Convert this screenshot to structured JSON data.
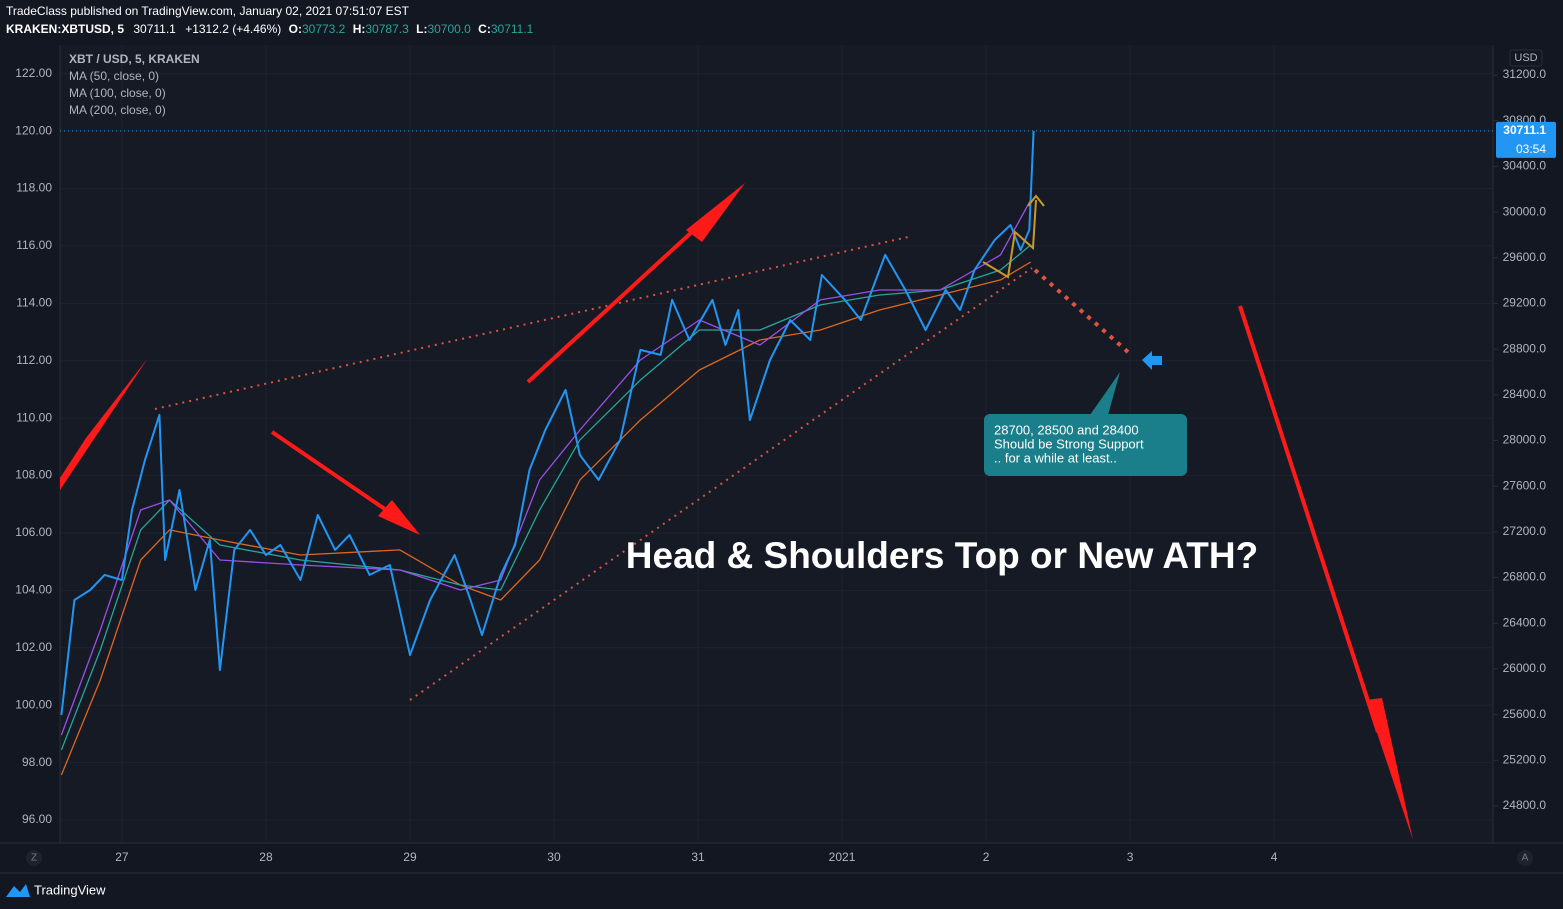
{
  "header": {
    "publisher": "TradeClass published on TradingView.com, January 02, 2021 07:51:07 EST",
    "symbol": "KRAKEN:XBTUSD, 5",
    "last": "30711.1",
    "change": "+1312.2 (+4.46%)",
    "open_label": "O:",
    "open": "30773.2",
    "high_label": "H:",
    "high": "30787.3",
    "low_label": "L:",
    "low": "30700.0",
    "close_label": "C:",
    "close": "30711.1"
  },
  "chart_data": {
    "type": "line",
    "currency": "USD",
    "timer": "03:54",
    "left_scale_button": "Z",
    "auto_scale_button": "A",
    "xlim": [
      -0.43,
      9.52
    ],
    "xticks": [
      {
        "value": 0,
        "label": "27"
      },
      {
        "value": 1,
        "label": "28"
      },
      {
        "value": 2,
        "label": "29"
      },
      {
        "value": 3,
        "label": "30"
      },
      {
        "value": 4,
        "label": "31"
      },
      {
        "value": 5,
        "label": "2021"
      },
      {
        "value": 6,
        "label": "2"
      },
      {
        "value": 7,
        "label": "3"
      },
      {
        "value": 8,
        "label": "4"
      }
    ],
    "ylim": [
      95.2,
      123.0
    ],
    "yticks": [
      {
        "value": 96,
        "label": "96.00"
      },
      {
        "value": 98,
        "label": "98.00"
      },
      {
        "value": 100,
        "label": "100.00"
      },
      {
        "value": 102,
        "label": "102.00"
      },
      {
        "value": 104,
        "label": "104.00"
      },
      {
        "value": 106,
        "label": "106.00"
      },
      {
        "value": 108,
        "label": "108.00"
      },
      {
        "value": 110,
        "label": "110.00"
      },
      {
        "value": 112,
        "label": "112.00"
      },
      {
        "value": 114,
        "label": "114.00"
      },
      {
        "value": 116,
        "label": "116.00"
      },
      {
        "value": 118,
        "label": "118.00"
      },
      {
        "value": 120,
        "label": "120.00"
      },
      {
        "value": 122,
        "label": "122.00"
      }
    ],
    "y2lim": [
      24476,
      31463
    ],
    "y2ticks": [
      {
        "value": 24800,
        "label": "24800.0"
      },
      {
        "value": 25200,
        "label": "25200.0"
      },
      {
        "value": 25600,
        "label": "25600.0"
      },
      {
        "value": 26000,
        "label": "26000.0"
      },
      {
        "value": 26400,
        "label": "26400.0"
      },
      {
        "value": 26800,
        "label": "26800.0"
      },
      {
        "value": 27200,
        "label": "27200.0"
      },
      {
        "value": 27600,
        "label": "27600.0"
      },
      {
        "value": 28000,
        "label": "28000.0"
      },
      {
        "value": 28400,
        "label": "28400.0"
      },
      {
        "value": 28800,
        "label": "28800.0"
      },
      {
        "value": 29200,
        "label": "29200.0"
      },
      {
        "value": 29600,
        "label": "29600.0"
      },
      {
        "value": 30000,
        "label": "30000.0"
      },
      {
        "value": 30400,
        "label": "30400.0"
      },
      {
        "value": 30800,
        "label": "30800.0"
      },
      {
        "value": 31200,
        "label": "31200.0"
      }
    ],
    "grid": true,
    "series": [
      {
        "name": "XBT / USD, 5, KRAKEN",
        "color": "#2196f3",
        "axis": "y2",
        "x": [
          -0.42,
          -0.33,
          -0.22,
          -0.12,
          0,
          0.07,
          0.16,
          0.26,
          0.3,
          0.4,
          0.51,
          0.61,
          0.68,
          0.78,
          0.89,
          1.0,
          1.1,
          1.24,
          1.36,
          1.48,
          1.58,
          1.72,
          1.86,
          2.0,
          2.14,
          2.31,
          2.42,
          2.5,
          2.63,
          2.73,
          2.83,
          2.94,
          3.08,
          3.18,
          3.31,
          3.46,
          3.6,
          3.74,
          3.82,
          3.94,
          4.1,
          4.19,
          4.28,
          4.36,
          4.5,
          4.64,
          4.78,
          4.86,
          5.02,
          5.13,
          5.3,
          5.44,
          5.58,
          5.72,
          5.82,
          5.92,
          6.06,
          6.17,
          6.24,
          6.3,
          6.33
        ],
        "values": [
          25597,
          26604,
          26691,
          26823,
          26779,
          27392,
          27830,
          28224,
          26954,
          27567,
          26691,
          27129,
          25991,
          27042,
          27217,
          26998,
          27085,
          26779,
          27348,
          27042,
          27173,
          26823,
          26910,
          26122,
          26604,
          26998,
          26604,
          26297,
          26823,
          27085,
          27742,
          28092,
          28443,
          27873,
          27655,
          28005,
          28793,
          28750,
          29231,
          28880,
          29231,
          28836,
          29143,
          28180,
          28705,
          29055,
          28880,
          29449,
          29231,
          29055,
          29625,
          29318,
          28968,
          29318,
          29143,
          29493,
          29756,
          29887,
          29668,
          29843,
          30711.1
        ]
      },
      {
        "name": "MA (50, close, 0)",
        "color": "#9c4fe8",
        "axis": "y2",
        "x": [
          -0.42,
          -0.15,
          0.13,
          0.33,
          0.68,
          1.24,
          1.93,
          2.35,
          2.63,
          2.9,
          3.18,
          3.6,
          4.01,
          4.43,
          4.85,
          5.26,
          5.68,
          6.1,
          6.31
        ],
        "values": [
          25422,
          26341,
          27392,
          27479,
          26954,
          26910,
          26866,
          26691,
          26779,
          27655,
          28092,
          28705,
          29055,
          28836,
          29231,
          29318,
          29318,
          29625,
          30106
        ]
      },
      {
        "name": "MA (100, close, 0)",
        "color": "#26a69a",
        "axis": "y2",
        "x": [
          -0.42,
          -0.15,
          0.13,
          0.33,
          0.68,
          1.24,
          1.93,
          2.35,
          2.63,
          2.9,
          3.18,
          3.6,
          4.01,
          4.43,
          4.85,
          5.26,
          5.68,
          6.1,
          6.31
        ],
        "values": [
          25290,
          26166,
          27217,
          27479,
          27085,
          26954,
          26866,
          26735,
          26691,
          27392,
          28005,
          28530,
          28968,
          28968,
          29187,
          29274,
          29318,
          29493,
          29712
        ]
      },
      {
        "name": "MA (200, close, 0)",
        "color": "#e0661c",
        "axis": "y2",
        "x": [
          -0.42,
          -0.15,
          0.13,
          0.33,
          0.68,
          1.24,
          1.93,
          2.35,
          2.63,
          2.9,
          3.18,
          3.6,
          4.01,
          4.43,
          4.85,
          5.26,
          5.68,
          6.1,
          6.31
        ],
        "values": [
          25071,
          25903,
          26954,
          27217,
          27129,
          26998,
          27042,
          26735,
          26604,
          26954,
          27655,
          28180,
          28617,
          28880,
          28968,
          29143,
          29274,
          29406,
          29563
        ]
      }
    ],
    "annotations": {
      "headline": "Head & Shoulders Top or New ATH?",
      "note": [
        "28700, 28500 and 28400",
        "Should be Strong Support",
        ".. for a while at least.."
      ]
    }
  },
  "footer": {
    "brand": "TradingView"
  }
}
